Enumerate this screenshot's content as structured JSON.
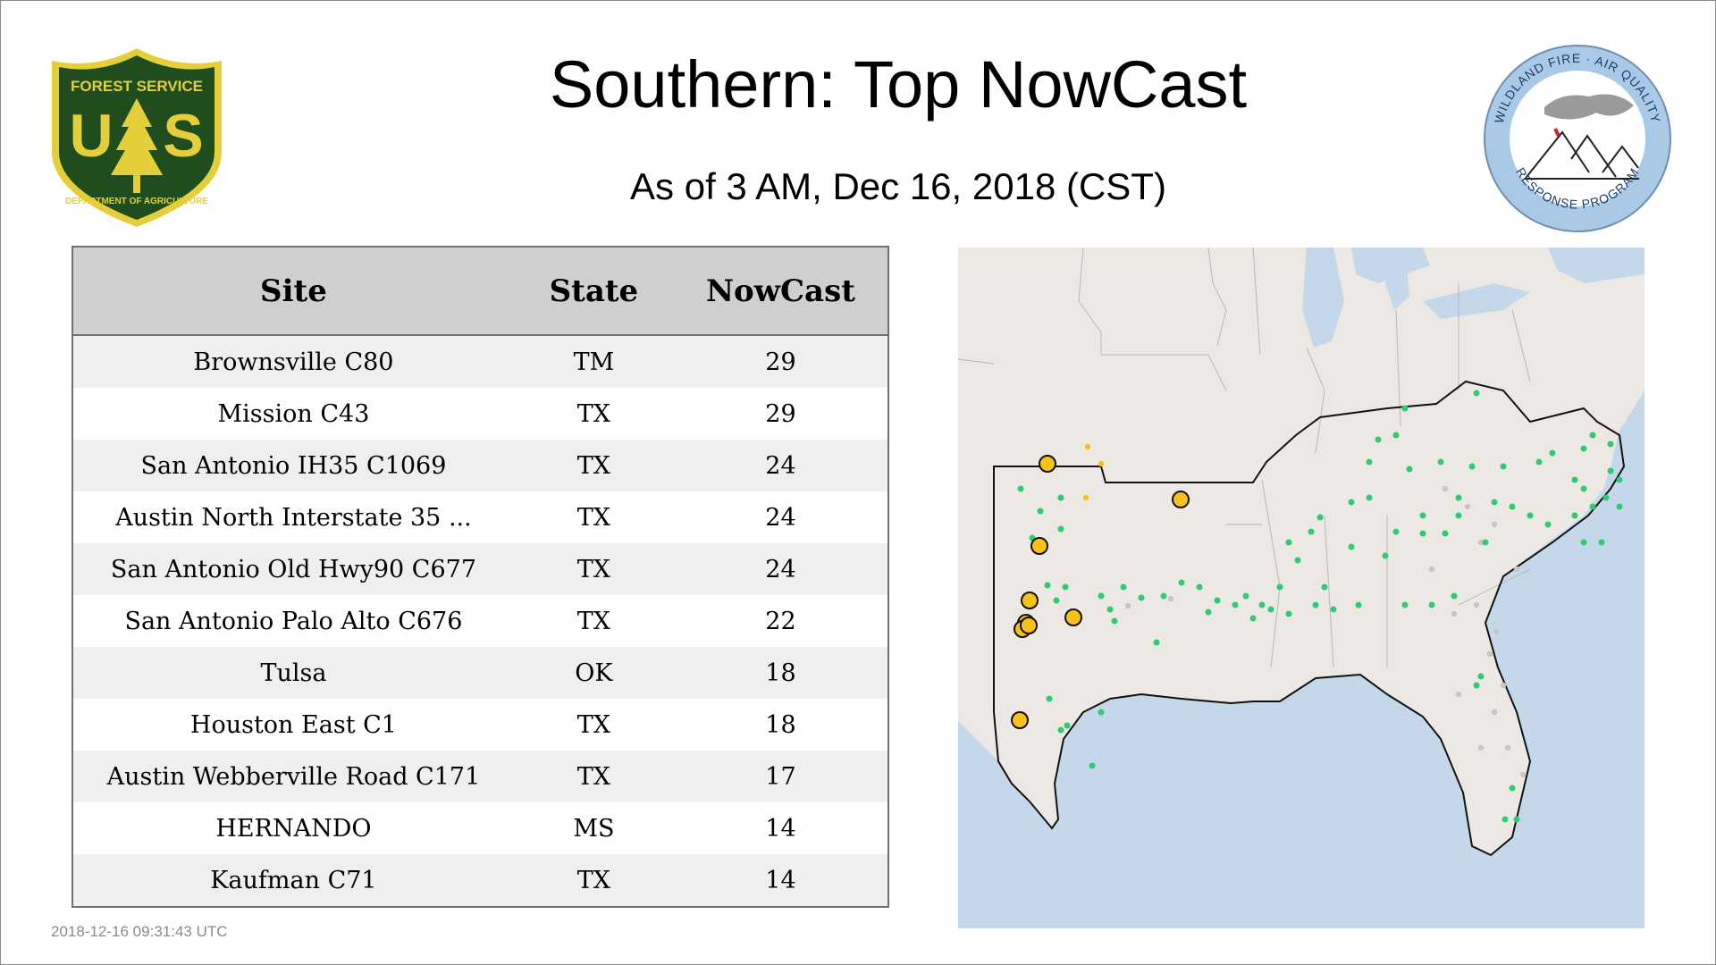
{
  "header": {
    "title": "Southern: Top NowCast",
    "subtitle": "As of  3 AM, Dec 16, 2018 (CST)"
  },
  "logos": {
    "forest_service": {
      "top_text": "FOREST SERVICE",
      "letters_left": "U",
      "letters_right": "S",
      "bottom_text": "DEPARTMENT OF AGRICULTURE",
      "color_green": "#1f4d1d",
      "color_gold": "#e4cf3a"
    },
    "wildland_fire": {
      "ring_text_top": "WILDLAND FIRE · AIR QUALITY",
      "ring_text_bottom": "RESPONSE PROGRAM",
      "ring_color": "#a9c9e6"
    }
  },
  "table": {
    "columns": [
      "Site",
      "State",
      "NowCast"
    ],
    "rows": [
      {
        "site": "Brownsville C80",
        "state": "TM",
        "nowcast": "29"
      },
      {
        "site": "Mission C43",
        "state": "TX",
        "nowcast": "29"
      },
      {
        "site": "San Antonio IH35 C1069",
        "state": "TX",
        "nowcast": "24"
      },
      {
        "site": "Austin North Interstate 35 ...",
        "state": "TX",
        "nowcast": "24"
      },
      {
        "site": "San Antonio Old Hwy90 C677",
        "state": "TX",
        "nowcast": "24"
      },
      {
        "site": "San Antonio Palo Alto C676",
        "state": "TX",
        "nowcast": "22"
      },
      {
        "site": "Tulsa",
        "state": "OK",
        "nowcast": "18"
      },
      {
        "site": "Houston East C1",
        "state": "TX",
        "nowcast": "18"
      },
      {
        "site": "Austin Webberville Road C171",
        "state": "TX",
        "nowcast": "17"
      },
      {
        "site": "HERNANDO",
        "state": "MS",
        "nowcast": "14"
      },
      {
        "site": "Kaufman C71",
        "state": "TX",
        "nowcast": "14"
      }
    ]
  },
  "footer": {
    "timestamp": "2018-12-16 09:31:43 UTC"
  },
  "map": {
    "colors": {
      "land": "#ece8e4",
      "water": "#c4d8ea",
      "good": "#2ecc71",
      "moderate": "#f6c21a",
      "no_data": "#c6c6c6",
      "outline": "#111111"
    }
  }
}
